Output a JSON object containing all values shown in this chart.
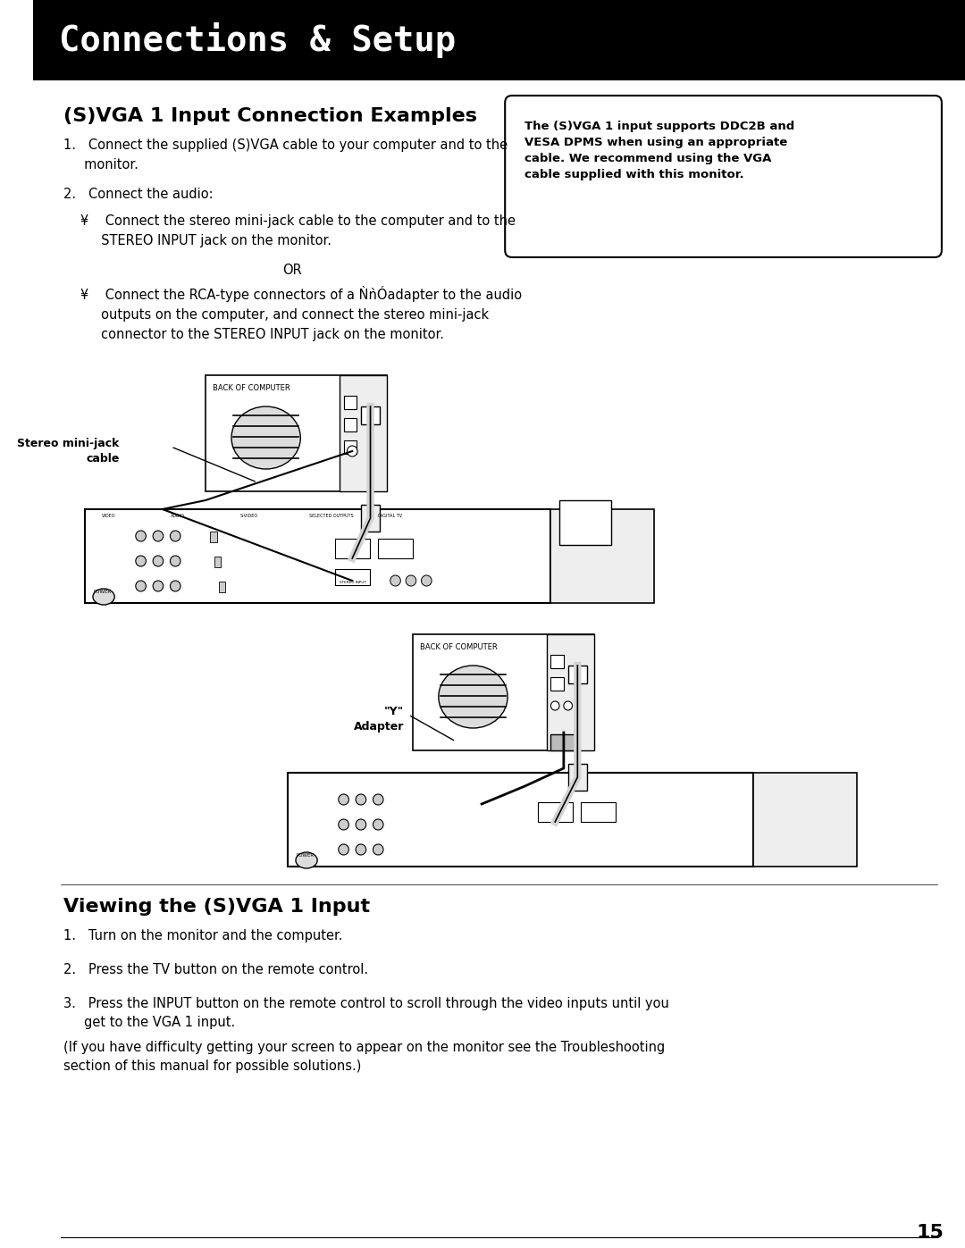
{
  "bg_color": "#ffffff",
  "header_bg": "#000000",
  "header_text": "Connections & Setup",
  "header_text_color": "#ffffff",
  "header_font_size": 28,
  "section1_title": "(S)VGA 1 Input Connection Examples",
  "section1_font_size": 16,
  "body_font_size": 10.5,
  "body_font_family": "DejaVu Sans",
  "items": [
    "1.   Connect the supplied (S)VGA cable to your computer and to the\n     monitor.",
    "2.   Connect the audio:"
  ],
  "sub_items1": [
    "¥    Connect the stereo mini-jack cable to the computer and to the\n     STEREO INPUT jack on the monitor."
  ],
  "or_text": "OR",
  "sub_items2": [
    "¥    Connect the RCA-type connectors of a ǸǹÓadapter to the audio\n     outputs on the computer, and connect the stereo mini-jack\n     connector to the STEREO INPUT jack on the monitor."
  ],
  "box_text": "The (S)VGA 1 input supports DDC2B and\nVESA DPMS when using an appropriate\ncable. We recommend using the VGA\ncable supplied with this monitor.",
  "label1": "Stereo mini-jack\ncable",
  "label2": "\"Y\"\nAdapter",
  "section2_title": "Viewing the (S)VGA 1 Input",
  "section2_items": [
    "1.   Turn on the monitor and the computer.",
    "2.   Press the TV button on the remote control.",
    "3.   Press the INPUT button on the remote control to scroll through the video inputs until you\n     get to the VGA 1 input."
  ],
  "footer_text": "(If you have difficulty getting your screen to appear on the monitor see the Troubleshooting\nsection of this manual for possible solutions.)",
  "page_number": "15"
}
